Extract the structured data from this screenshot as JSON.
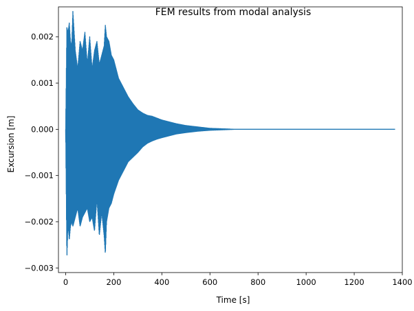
{
  "chart_data": {
    "type": "line",
    "title": "FEM results from modal analysis",
    "xlabel": "Time [s]",
    "ylabel": "Excursion [m]",
    "xlim": [
      -30,
      1400
    ],
    "ylim": [
      -0.0031,
      0.00265
    ],
    "grid": false,
    "legend": "none",
    "line_color": "#1f77b4",
    "x_ticks": [
      0,
      200,
      400,
      600,
      800,
      1000,
      1200,
      1400
    ],
    "x_tick_labels": [
      "0",
      "200",
      "400",
      "600",
      "800",
      "1000",
      "1200",
      "1400"
    ],
    "y_ticks": [
      -0.003,
      -0.002,
      -0.001,
      0.0,
      0.001,
      0.002
    ],
    "y_tick_labels": [
      "−0.003",
      "−0.002",
      "−0.001",
      "0.000",
      "0.001",
      "0.002"
    ],
    "series": [
      {
        "x": [
          0,
          5,
          10,
          15,
          20,
          25,
          30,
          40,
          50,
          60,
          70,
          80,
          90,
          100,
          110,
          120,
          130,
          140,
          150,
          160,
          165,
          170,
          180,
          190,
          200,
          220,
          240,
          260,
          280,
          300,
          320,
          340,
          360,
          380,
          400,
          430,
          460,
          500,
          550,
          600,
          650,
          700,
          800,
          1000,
          1200,
          1370
        ],
        "upper": [
          0.0,
          0.0022,
          0.0021,
          0.0023,
          0.0019,
          0.0018,
          0.00255,
          0.0017,
          0.0013,
          0.0019,
          0.0017,
          0.0021,
          0.0014,
          0.002,
          0.0013,
          0.0017,
          0.0019,
          0.0014,
          0.0016,
          0.0018,
          0.00225,
          0.002,
          0.0019,
          0.0016,
          0.0015,
          0.0011,
          0.0009,
          0.0007,
          0.00055,
          0.00042,
          0.00035,
          0.0003,
          0.00028,
          0.00024,
          0.0002,
          0.00016,
          0.00012,
          8e-05,
          5e-05,
          2e-05,
          1e-05,
          0.0,
          0.0,
          0.0,
          0.0,
          0.0
        ],
        "lower": [
          0.0,
          -0.0028,
          -0.002,
          -0.0024,
          -0.0021,
          -0.002,
          -0.0021,
          -0.0019,
          -0.0017,
          -0.0021,
          -0.0019,
          -0.0018,
          -0.0017,
          -0.002,
          -0.0019,
          -0.0022,
          -0.0015,
          -0.0023,
          -0.0018,
          -0.0023,
          -0.0027,
          -0.002,
          -0.0017,
          -0.0016,
          -0.0014,
          -0.0011,
          -0.0009,
          -0.0007,
          -0.0006,
          -0.0005,
          -0.00038,
          -0.0003,
          -0.00025,
          -0.00021,
          -0.00018,
          -0.00014,
          -0.0001,
          -7e-05,
          -4e-05,
          -2e-05,
          -1e-05,
          0.0,
          0.0,
          0.0,
          0.0,
          0.0
        ]
      }
    ]
  }
}
